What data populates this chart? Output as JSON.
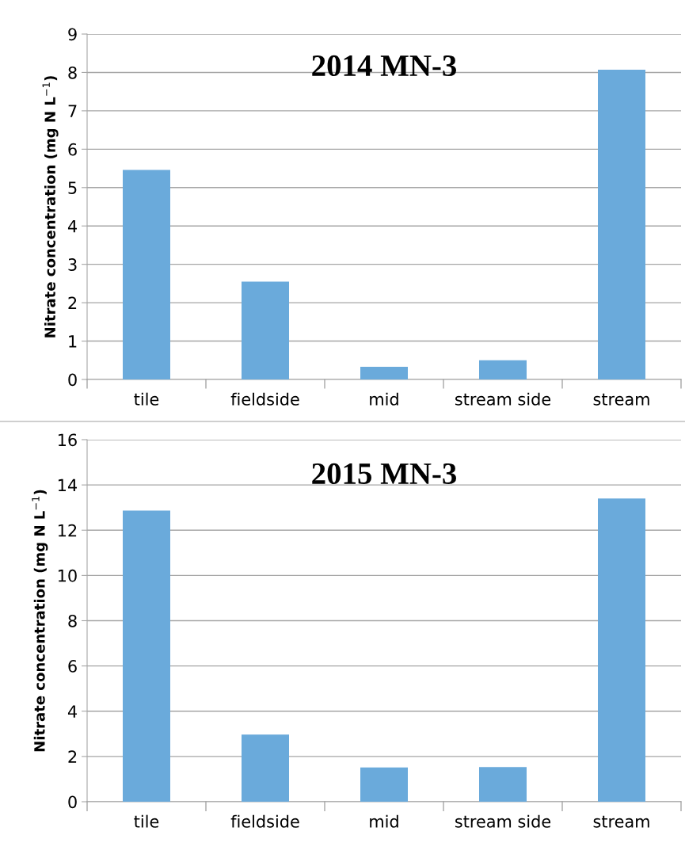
{
  "chart_data": [
    {
      "type": "bar",
      "title": "2014 MN-3",
      "ylabel": "Nitrate concentration (mg N L$^{−1}$)",
      "categories": [
        "tile",
        "fieldside",
        "mid",
        "stream side",
        "stream"
      ],
      "values": [
        5.46,
        2.55,
        0.33,
        0.5,
        8.07
      ],
      "color": "#6aaadb",
      "ylim": [
        0,
        9
      ],
      "yticks": [
        0,
        1,
        2,
        3,
        4,
        5,
        6,
        7,
        8,
        9
      ],
      "grid": "y"
    },
    {
      "type": "bar",
      "title": "2015 MN-3",
      "ylabel": "Nitrate concentration (mg N L$^{−1}$)",
      "categories": [
        "tile",
        "fieldside",
        "mid",
        "stream side",
        "stream"
      ],
      "values": [
        12.87,
        2.97,
        1.51,
        1.53,
        13.4
      ],
      "color": "#6aaadb",
      "ylim": [
        0,
        16
      ],
      "yticks": [
        0,
        2,
        4,
        6,
        8,
        10,
        12,
        14,
        16
      ],
      "grid": "y"
    }
  ]
}
